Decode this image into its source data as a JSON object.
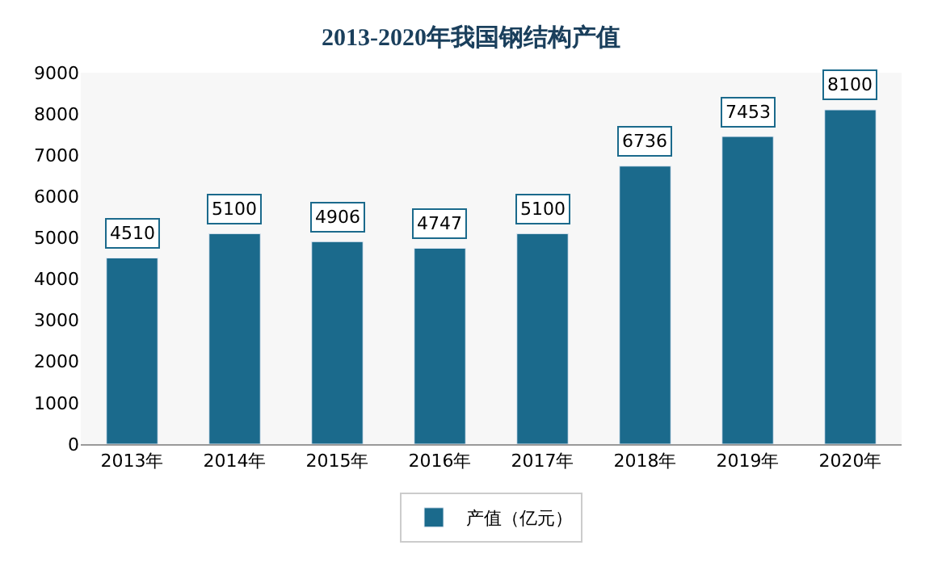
{
  "chart_data": {
    "type": "bar",
    "title": "2013-2020年我国钢结构产值",
    "categories": [
      "2013年",
      "2014年",
      "2015年",
      "2016年",
      "2017年",
      "2018年",
      "2019年",
      "2020年"
    ],
    "series": [
      {
        "name": "产值（亿元）",
        "color": "#1b6a8c",
        "values": [
          4510,
          5100,
          4906,
          4747,
          5100,
          6736,
          7453,
          8100
        ]
      }
    ],
    "ylim": [
      0,
      9000
    ],
    "yticks": [
      0,
      1000,
      2000,
      3000,
      4000,
      5000,
      6000,
      7000,
      8000,
      9000
    ],
    "grid": false,
    "legend": "bottom",
    "data_labels": true
  }
}
